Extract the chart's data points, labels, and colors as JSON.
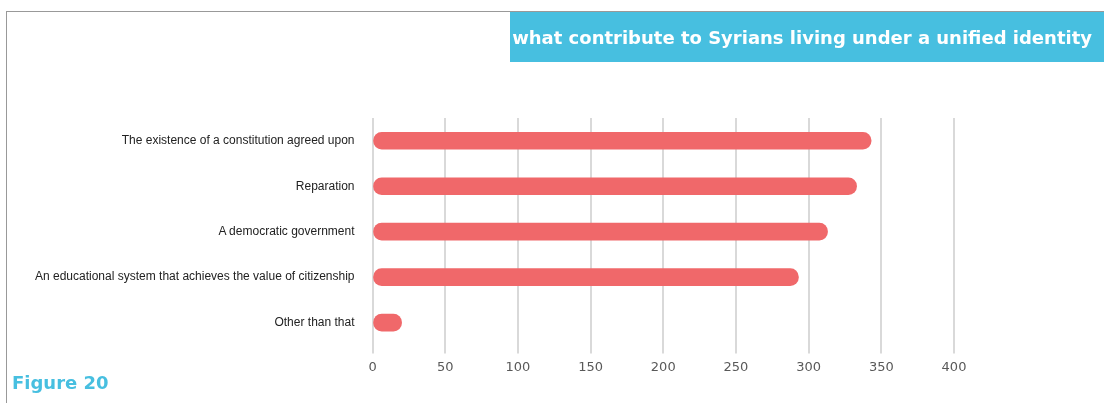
{
  "chart_data": {
    "type": "bar",
    "orientation": "horizontal",
    "title": "what contribute to Syrians living under a unified identity",
    "categories": [
      "The existence of a constitution agreed upon",
      "Reparation",
      "A democratic government",
      "An educational system that achieves the value of citizenship",
      "Other than that"
    ],
    "values": [
      343,
      333,
      313,
      293,
      20
    ],
    "color": "#f0686a",
    "xlim": [
      0,
      400
    ],
    "xticks": [
      0,
      50,
      100,
      150,
      200,
      250,
      300,
      350,
      400
    ],
    "grid": "x",
    "annotations": [
      "Figure 20"
    ]
  }
}
